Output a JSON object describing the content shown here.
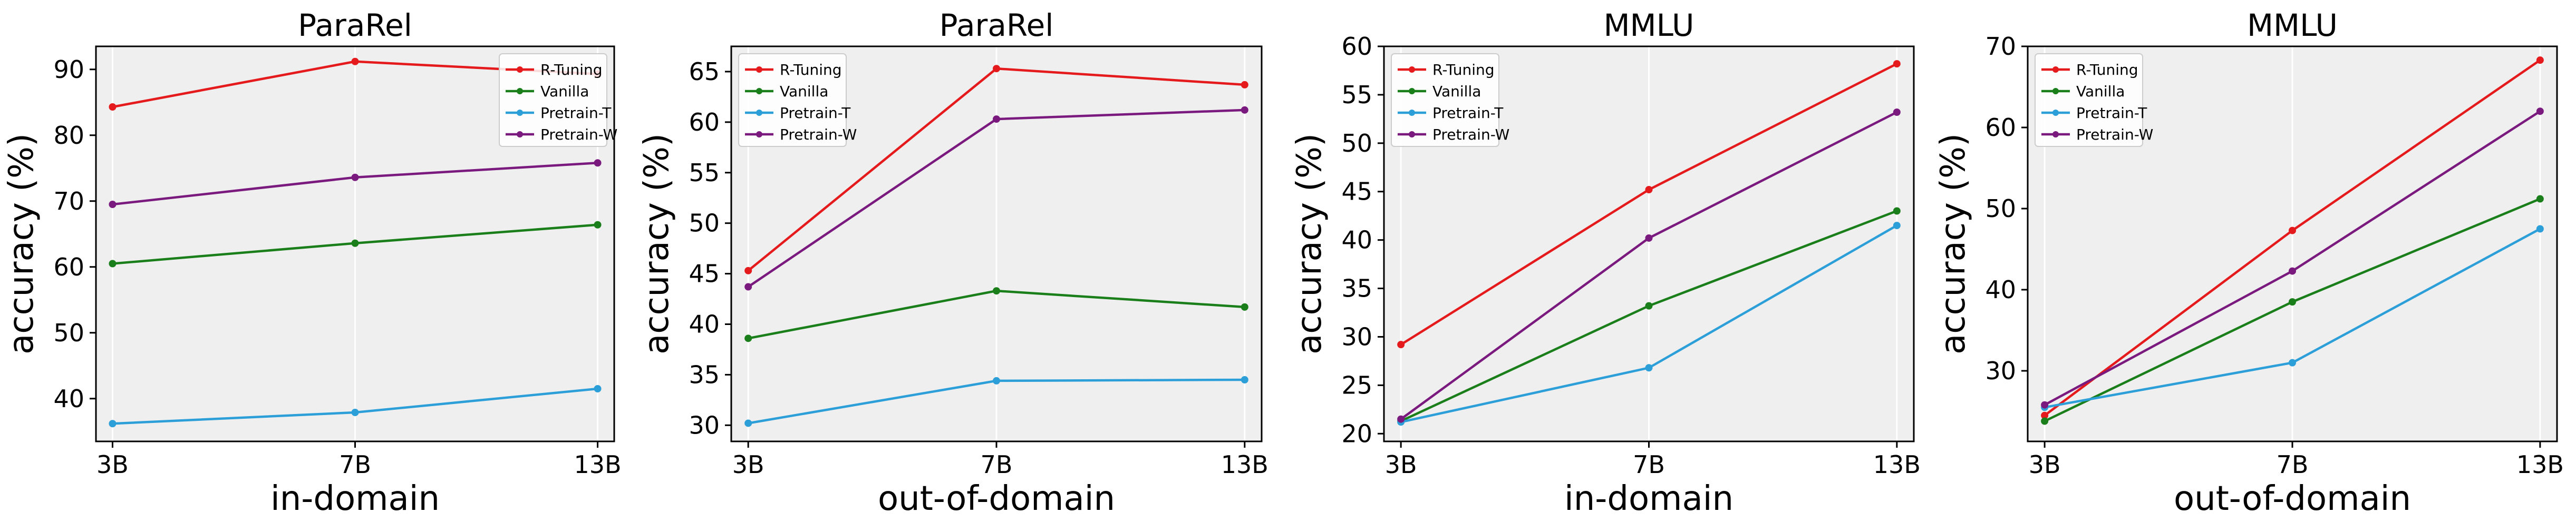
{
  "chart_data": [
    {
      "type": "line",
      "title": "ParaRel",
      "xlabel": "in-domain",
      "ylabel": "accuracy (%)",
      "categories": [
        "3B",
        "7B",
        "13B"
      ],
      "ylim": [
        33.5,
        93.5
      ],
      "yticks": [
        40,
        50,
        60,
        70,
        80,
        90
      ],
      "grid": "vertical",
      "legend_position": "upper-right",
      "series": [
        {
          "name": "R-Tuning",
          "color": "#e41a1c",
          "values": [
            84.3,
            91.2,
            89.3
          ]
        },
        {
          "name": "Vanilla",
          "color": "#1a7f1a",
          "values": [
            60.5,
            63.6,
            66.4
          ]
        },
        {
          "name": "Pretrain-T",
          "color": "#2c9fd9",
          "values": [
            36.2,
            37.9,
            41.5
          ]
        },
        {
          "name": "Pretrain-W",
          "color": "#7b1a7e",
          "values": [
            69.5,
            73.6,
            75.8
          ]
        }
      ]
    },
    {
      "type": "line",
      "title": "ParaRel",
      "xlabel": "out-of-domain",
      "ylabel": "accuracy (%)",
      "categories": [
        "3B",
        "7B",
        "13B"
      ],
      "ylim": [
        28.4,
        67.5
      ],
      "yticks": [
        30,
        35,
        40,
        45,
        50,
        55,
        60,
        65
      ],
      "grid": "vertical",
      "legend_position": "upper-left",
      "series": [
        {
          "name": "R-Tuning",
          "color": "#e41a1c",
          "values": [
            45.3,
            65.3,
            63.7
          ]
        },
        {
          "name": "Vanilla",
          "color": "#1a7f1a",
          "values": [
            38.6,
            43.3,
            41.7
          ]
        },
        {
          "name": "Pretrain-T",
          "color": "#2c9fd9",
          "values": [
            30.2,
            34.4,
            34.5
          ]
        },
        {
          "name": "Pretrain-W",
          "color": "#7b1a7e",
          "values": [
            43.7,
            60.3,
            61.2
          ]
        }
      ]
    },
    {
      "type": "line",
      "title": "MMLU",
      "xlabel": "in-domain",
      "ylabel": "accuracy (%)",
      "categories": [
        "3B",
        "7B",
        "13B"
      ],
      "ylim": [
        19.2,
        60.0
      ],
      "yticks": [
        20,
        25,
        30,
        35,
        40,
        45,
        50,
        55,
        60
      ],
      "grid": "vertical",
      "legend_position": "upper-left",
      "series": [
        {
          "name": "R-Tuning",
          "color": "#e41a1c",
          "values": [
            29.2,
            45.2,
            58.2
          ]
        },
        {
          "name": "Vanilla",
          "color": "#1a7f1a",
          "values": [
            21.3,
            33.2,
            43.0
          ]
        },
        {
          "name": "Pretrain-T",
          "color": "#2c9fd9",
          "values": [
            21.2,
            26.8,
            41.5
          ]
        },
        {
          "name": "Pretrain-W",
          "color": "#7b1a7e",
          "values": [
            21.5,
            40.2,
            53.2
          ]
        }
      ]
    },
    {
      "type": "line",
      "title": "MMLU",
      "xlabel": "out-of-domain",
      "ylabel": "accuracy (%)",
      "categories": [
        "3B",
        "7B",
        "13B"
      ],
      "ylim": [
        21.3,
        70.0
      ],
      "yticks": [
        30,
        40,
        50,
        60,
        70
      ],
      "grid": "vertical",
      "legend_position": "upper-left",
      "series": [
        {
          "name": "R-Tuning",
          "color": "#e41a1c",
          "values": [
            24.5,
            47.3,
            68.3
          ]
        },
        {
          "name": "Vanilla",
          "color": "#1a7f1a",
          "values": [
            23.8,
            38.5,
            51.2
          ]
        },
        {
          "name": "Pretrain-T",
          "color": "#2c9fd9",
          "values": [
            25.5,
            31.0,
            47.5
          ]
        },
        {
          "name": "Pretrain-W",
          "color": "#7b1a7e",
          "values": [
            25.8,
            42.3,
            62.0
          ]
        }
      ]
    }
  ]
}
